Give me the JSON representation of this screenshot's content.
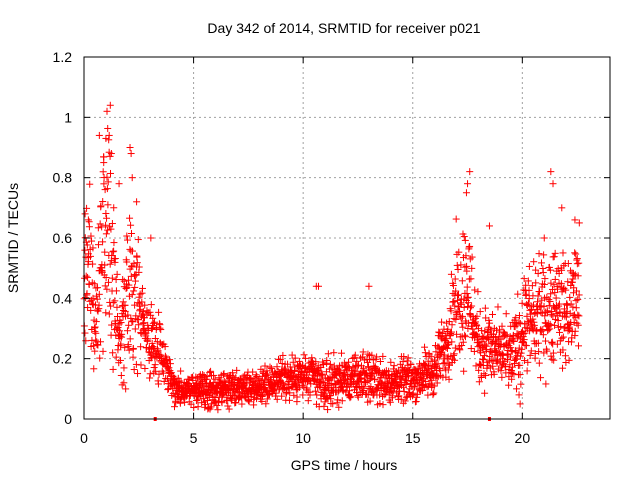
{
  "chart_data": {
    "type": "scatter",
    "title": "Day 342 of 2014, SRMTID for receiver p021",
    "xlabel": "GPS time / hours",
    "ylabel": "SRMTID / TECUs",
    "xlim": [
      0,
      24
    ],
    "ylim": [
      0,
      1.2
    ],
    "xticks": [
      0,
      5,
      10,
      15,
      20
    ],
    "xtick_labels": [
      "0",
      "5",
      "10",
      "15",
      "20"
    ],
    "yticks": [
      0,
      0.2,
      0.4,
      0.6,
      0.8,
      1.0,
      1.2
    ],
    "ytick_labels": [
      "0",
      "0.2",
      "0.4",
      "0.6",
      "0.8",
      "1",
      "1.2"
    ],
    "grid": true,
    "marker": "plus",
    "color": "#ff0000",
    "series": [
      {
        "name": "SRMTID",
        "profile": [
          [
            0.0,
            0.45,
            0.15
          ],
          [
            0.3,
            0.5,
            0.18
          ],
          [
            0.5,
            0.3,
            0.1
          ],
          [
            0.8,
            0.55,
            0.25
          ],
          [
            1.1,
            0.7,
            0.3
          ],
          [
            1.3,
            0.45,
            0.2
          ],
          [
            1.6,
            0.3,
            0.12
          ],
          [
            2.0,
            0.35,
            0.2
          ],
          [
            2.3,
            0.45,
            0.18
          ],
          [
            2.7,
            0.3,
            0.1
          ],
          [
            3.0,
            0.25,
            0.08
          ],
          [
            3.5,
            0.22,
            0.07
          ],
          [
            3.9,
            0.15,
            0.05
          ],
          [
            4.2,
            0.1,
            0.04
          ],
          [
            5.0,
            0.1,
            0.04
          ],
          [
            6.0,
            0.09,
            0.04
          ],
          [
            7.0,
            0.1,
            0.04
          ],
          [
            8.0,
            0.11,
            0.04
          ],
          [
            9.0,
            0.13,
            0.05
          ],
          [
            10.0,
            0.14,
            0.06
          ],
          [
            11.0,
            0.12,
            0.06
          ],
          [
            12.0,
            0.13,
            0.05
          ],
          [
            13.0,
            0.14,
            0.06
          ],
          [
            14.0,
            0.12,
            0.05
          ],
          [
            15.0,
            0.13,
            0.05
          ],
          [
            16.0,
            0.16,
            0.06
          ],
          [
            16.5,
            0.25,
            0.08
          ],
          [
            17.0,
            0.4,
            0.15
          ],
          [
            17.5,
            0.45,
            0.18
          ],
          [
            18.0,
            0.25,
            0.1
          ],
          [
            19.0,
            0.22,
            0.08
          ],
          [
            19.5,
            0.2,
            0.08
          ],
          [
            20.0,
            0.3,
            0.12
          ],
          [
            21.0,
            0.35,
            0.13
          ],
          [
            21.5,
            0.4,
            0.15
          ],
          [
            22.0,
            0.35,
            0.12
          ],
          [
            22.6,
            0.42,
            0.15
          ]
        ],
        "spikes": [
          [
            1.0,
            0.93
          ],
          [
            1.05,
            1.02
          ],
          [
            1.2,
            1.04
          ],
          [
            1.15,
            0.94
          ],
          [
            1.25,
            0.88
          ],
          [
            0.7,
            0.94
          ],
          [
            0.9,
            0.85
          ],
          [
            2.1,
            0.9
          ],
          [
            2.15,
            0.88
          ],
          [
            2.2,
            0.8
          ],
          [
            0.05,
            0.68
          ],
          [
            0.2,
            0.66
          ],
          [
            2.4,
            0.72
          ],
          [
            3.05,
            0.6
          ],
          [
            1.6,
            0.78
          ],
          [
            10.6,
            0.44
          ],
          [
            10.7,
            0.44
          ],
          [
            13.0,
            0.44
          ],
          [
            17.6,
            0.82
          ],
          [
            17.5,
            0.78
          ],
          [
            17.45,
            0.75
          ],
          [
            18.5,
            0.64
          ],
          [
            21.0,
            0.6
          ],
          [
            21.3,
            0.82
          ],
          [
            21.4,
            0.78
          ],
          [
            21.8,
            0.7
          ],
          [
            22.4,
            0.66
          ],
          [
            22.6,
            0.65
          ],
          [
            19.9,
            0.05
          ],
          [
            19.85,
            0.08
          ]
        ],
        "ticks_at_zero": [
          3.25,
          18.5
        ]
      }
    ]
  }
}
